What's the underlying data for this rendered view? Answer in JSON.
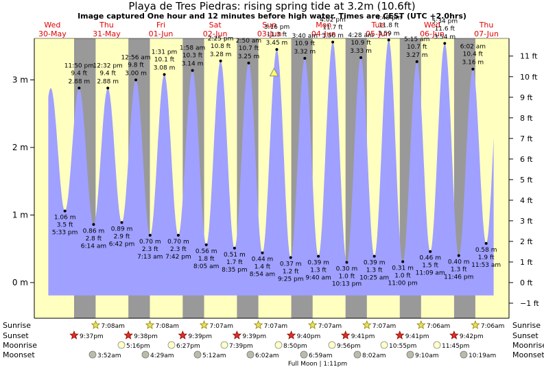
{
  "title": "Playa de Tres Piedras: rising  spring tide at 3.2m (10.6ft)",
  "subtitle": "Image captured One hour and 12 minutes before high water. Times are CEST (UTC +2.0hrs)",
  "colors": {
    "day": "#ffffc0",
    "night": "#999999",
    "tide": "#9fa0ff",
    "date_red": "#e00000",
    "current_marker": "#ffff66"
  },
  "chart_data": {
    "type": "area",
    "title": "Playa de Tres Piedras: rising  spring tide at 3.2m (10.6ft)",
    "y_left_unit": "m",
    "y_right_unit": "ft",
    "y_left_ticks": [
      {
        "v": 3,
        "label": "3 m"
      },
      {
        "v": 2,
        "label": "2 m"
      },
      {
        "v": 1,
        "label": "1 m"
      },
      {
        "v": 0,
        "label": "0 m"
      }
    ],
    "y_right_ticks": [
      {
        "ft": 11,
        "label": "11 ft"
      },
      {
        "ft": 10,
        "label": "10 ft"
      },
      {
        "ft": 9,
        "label": "9 ft"
      },
      {
        "ft": 8,
        "label": "8 ft"
      },
      {
        "ft": 7,
        "label": "7 ft"
      },
      {
        "ft": 6,
        "label": "6 ft"
      },
      {
        "ft": 5,
        "label": "5 ft"
      },
      {
        "ft": 4,
        "label": "4 ft"
      },
      {
        "ft": 3,
        "label": "3 ft"
      },
      {
        "ft": 2,
        "label": "2 ft"
      },
      {
        "ft": 1,
        "label": "1 ft"
      },
      {
        "ft": 0,
        "label": "0 ft"
      },
      {
        "ft": -1,
        "label": "−1 ft"
      }
    ],
    "ylim_m": [
      -0.4,
      3.6
    ],
    "x_range_hours": [
      -20,
      190
    ],
    "days": [
      {
        "day": "Wed",
        "date": "30-May",
        "t": -12
      },
      {
        "day": "Thu",
        "date": "31-May",
        "t": 12
      },
      {
        "day": "Fri",
        "date": "01-Jun",
        "t": 36
      },
      {
        "day": "Sat",
        "date": "02-Jun",
        "t": 60
      },
      {
        "day": "Sun",
        "date": "03-Jun",
        "t": 84
      },
      {
        "day": "Mon",
        "date": "04-Jun",
        "t": 108
      },
      {
        "day": "Tue",
        "date": "05-Jun",
        "t": 132
      },
      {
        "day": "Wed",
        "date": "06-Jun",
        "t": 156
      },
      {
        "day": "Thu",
        "date": "07-Jun",
        "t": 180
      }
    ],
    "night_bands": [
      {
        "start": -2.4,
        "end": 7.13
      },
      {
        "start": 21.62,
        "end": 31.13
      },
      {
        "start": 45.65,
        "end": 55.12
      },
      {
        "start": 69.65,
        "end": 79.12
      },
      {
        "start": 93.67,
        "end": 103.12
      },
      {
        "start": 117.68,
        "end": 127.12
      },
      {
        "start": 141.68,
        "end": 151.1
      },
      {
        "start": 165.7,
        "end": 175.1
      }
    ],
    "extremes": [
      {
        "t": -6.45,
        "m": 1.06,
        "ft": "3.5 ft",
        "time": "5:33 pm",
        "type": "low"
      },
      {
        "t": -0.17,
        "m": 2.88,
        "ft": "9.4 ft",
        "time": "11:50 pm",
        "type": "high"
      },
      {
        "t": 6.23,
        "m": 0.86,
        "ft": "2.8 ft",
        "time": "6:14 am",
        "type": "low"
      },
      {
        "t": 12.53,
        "m": 2.88,
        "ft": "9.4 ft",
        "time": "12:32 pm",
        "type": "high"
      },
      {
        "t": 18.7,
        "m": 0.89,
        "ft": "2.9 ft",
        "time": "6:42 pm",
        "type": "low"
      },
      {
        "t": 24.93,
        "m": 3.0,
        "ft": "9.8 ft",
        "time": "12:56 am",
        "type": "high"
      },
      {
        "t": 31.22,
        "m": 0.7,
        "ft": "2.3 ft",
        "time": "7:13 am",
        "type": "low"
      },
      {
        "t": 37.52,
        "m": 3.08,
        "ft": "10.1 ft",
        "time": "1:31 pm",
        "type": "high"
      },
      {
        "t": 43.7,
        "m": 0.7,
        "ft": "2.3 ft",
        "time": "7:42 pm",
        "type": "low"
      },
      {
        "t": 49.97,
        "m": 3.14,
        "ft": "10.3 ft",
        "time": "1:58 am",
        "type": "high"
      },
      {
        "t": 56.08,
        "m": 0.56,
        "ft": "1.8 ft",
        "time": "8:05 am",
        "type": "low"
      },
      {
        "t": 62.42,
        "m": 3.28,
        "ft": "10.8 ft",
        "time": "2:25 pm",
        "type": "high"
      },
      {
        "t": 68.58,
        "m": 0.51,
        "ft": "1.7 ft",
        "time": "8:35 pm",
        "type": "low"
      },
      {
        "t": 74.83,
        "m": 3.25,
        "ft": "10.7 ft",
        "time": "2:50 am",
        "type": "high"
      },
      {
        "t": 80.9,
        "m": 0.44,
        "ft": "1.4 ft",
        "time": "8:54 am",
        "type": "low"
      },
      {
        "t": 87.27,
        "m": 3.45,
        "ft": "11.3 ft",
        "time": "3:16 pm",
        "type": "high"
      },
      {
        "t": 93.42,
        "m": 0.37,
        "ft": "1.2 ft",
        "time": "9:25 pm",
        "type": "low"
      },
      {
        "t": 99.67,
        "m": 3.32,
        "ft": "10.9 ft",
        "time": "3:40 am",
        "type": "high"
      },
      {
        "t": 105.67,
        "m": 0.39,
        "ft": "1.3 ft",
        "time": "9:40 am",
        "type": "low"
      },
      {
        "t": 112.03,
        "m": 3.56,
        "ft": "11.7 ft",
        "time": "4:02 pm",
        "type": "high"
      },
      {
        "t": 118.22,
        "m": 0.3,
        "ft": "1.0 ft",
        "time": "10:13 pm",
        "type": "low"
      },
      {
        "t": 124.47,
        "m": 3.33,
        "ft": "10.9 ft",
        "time": "4:28 am",
        "type": "high"
      },
      {
        "t": 130.42,
        "m": 0.39,
        "ft": "1.3 ft",
        "time": "10:25 am",
        "type": "low"
      },
      {
        "t": 136.8,
        "m": 3.59,
        "ft": "11.8 ft",
        "time": "4:48 pm",
        "type": "high"
      },
      {
        "t": 143.0,
        "m": 0.31,
        "ft": "1.0 ft",
        "time": "11:00 pm",
        "type": "low"
      },
      {
        "t": 149.25,
        "m": 3.27,
        "ft": "10.7 ft",
        "time": "5:15 am",
        "type": "high"
      },
      {
        "t": 155.15,
        "m": 0.46,
        "ft": "1.5 ft",
        "time": "11:09 am",
        "type": "low"
      },
      {
        "t": 161.57,
        "m": 3.54,
        "ft": "11.6 ft",
        "time": "5:34 pm",
        "type": "high"
      },
      {
        "t": 167.77,
        "m": 0.4,
        "ft": "1.3 ft",
        "time": "11:46 pm",
        "type": "low"
      },
      {
        "t": 174.03,
        "m": 3.16,
        "ft": "10.4 ft",
        "time": "6:02 am",
        "type": "high"
      },
      {
        "t": 179.88,
        "m": 0.58,
        "ft": "1.9 ft",
        "time": "11:53 am",
        "type": "low"
      }
    ],
    "current": {
      "t": 86.07,
      "m": 3.2
    },
    "sunrise": [
      "7:08am",
      "7:08am",
      "7:07am",
      "7:07am",
      "7:07am",
      "7:07am",
      "7:06am",
      "7:06am"
    ],
    "sunset": [
      "9:37pm",
      "9:38pm",
      "9:39pm",
      "9:39pm",
      "9:40pm",
      "9:41pm",
      "9:41pm",
      "9:42pm"
    ],
    "moonrise": [
      "5:16pm",
      "6:27pm",
      "7:39pm",
      "8:50pm",
      "9:56pm",
      "10:55pm",
      "11:45pm"
    ],
    "moonset": [
      "3:52am",
      "4:29am",
      "5:12am",
      "6:02am",
      "6:59am",
      "8:02am",
      "9:10am",
      "10:19am"
    ],
    "row_labels": {
      "sunrise": "Sunrise",
      "sunset": "Sunset",
      "moonrise": "Moonrise",
      "moonset": "Moonset"
    },
    "moon_phase": "Full Moon | 1:11pm"
  }
}
